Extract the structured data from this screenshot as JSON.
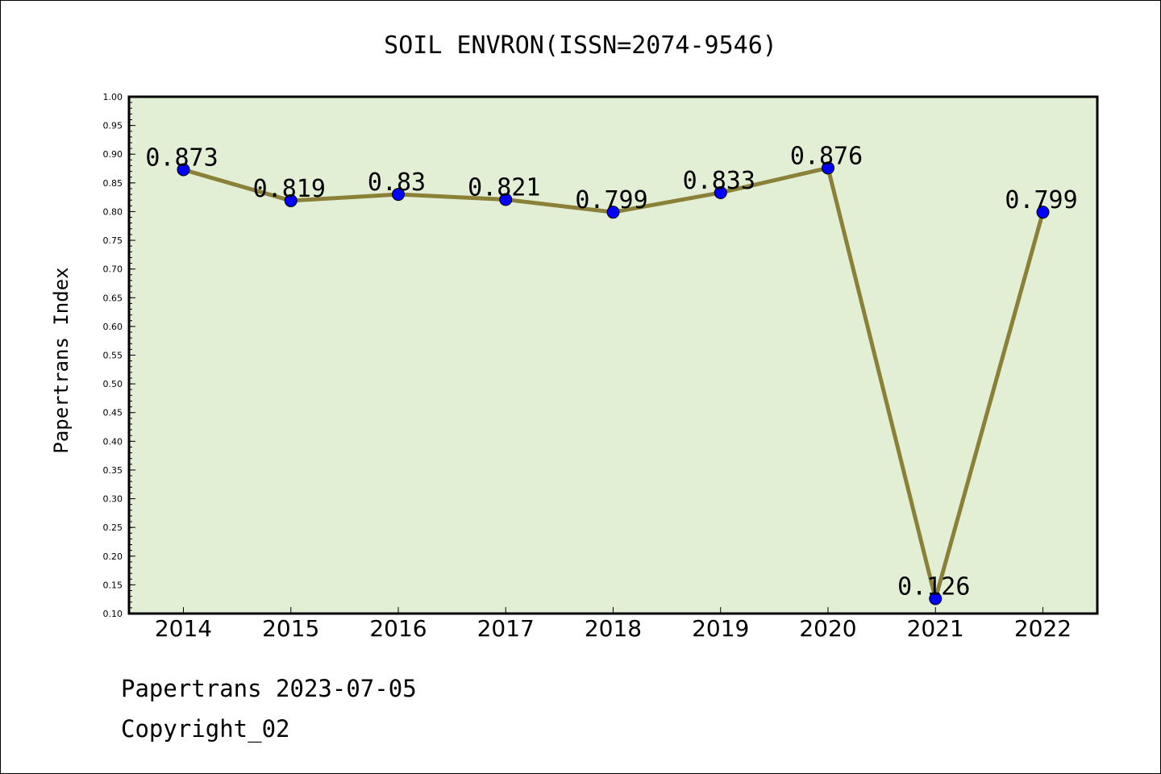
{
  "chart_data": {
    "type": "line",
    "title": "SOIL ENVRON(ISSN=2074-9546)",
    "xlabel": "",
    "ylabel": "Papertrans Index",
    "categories": [
      "2014",
      "2015",
      "2016",
      "2017",
      "2018",
      "2019",
      "2020",
      "2021",
      "2022"
    ],
    "series": [
      {
        "values": [
          0.873,
          0.819,
          0.83,
          0.821,
          0.799,
          0.833,
          0.876,
          0.126,
          0.799
        ],
        "labels": [
          "0.873",
          "0.819",
          "0.83",
          "0.821",
          "0.799",
          "0.833",
          "0.876",
          "0.126",
          "0.799"
        ]
      }
    ],
    "ylim": [
      0.1,
      1.0
    ],
    "yticks": [
      "0.10",
      "0.15",
      "0.20",
      "0.25",
      "0.30",
      "0.35",
      "0.40",
      "0.45",
      "0.50",
      "0.55",
      "0.60",
      "0.65",
      "0.70",
      "0.75",
      "0.80",
      "0.85",
      "0.90",
      "0.95",
      "1.00"
    ],
    "grid": false,
    "legend": "none",
    "colors": {
      "plot_background": "#e2efd5",
      "line": "#8b8038",
      "marker": "#0000ff"
    }
  },
  "footer": {
    "line1": "Papertrans 2023-07-05",
    "line2": "Copyright_02"
  }
}
